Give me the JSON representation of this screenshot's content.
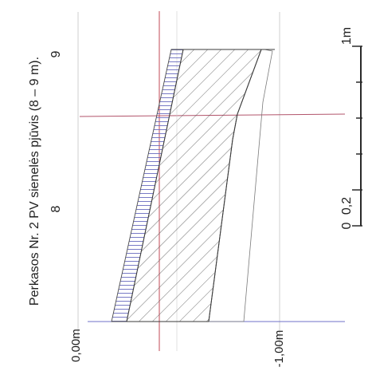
{
  "drawing": {
    "title": "Perkasos Nr. 2 PV sienelės pjūvis (8 – 9 m).",
    "meter_labels": {
      "m9": "9",
      "m8": "8"
    },
    "level_labels": {
      "top": "0,00m",
      "bottom": "-1,00m"
    },
    "scale_bar": {
      "label_0": "0",
      "label_02": "0,2",
      "label_1m": "1m"
    },
    "colors": {
      "line": "#3b3b3b",
      "grid_blue": "#6f72c9",
      "grid_red": "#c24a55"
    }
  }
}
